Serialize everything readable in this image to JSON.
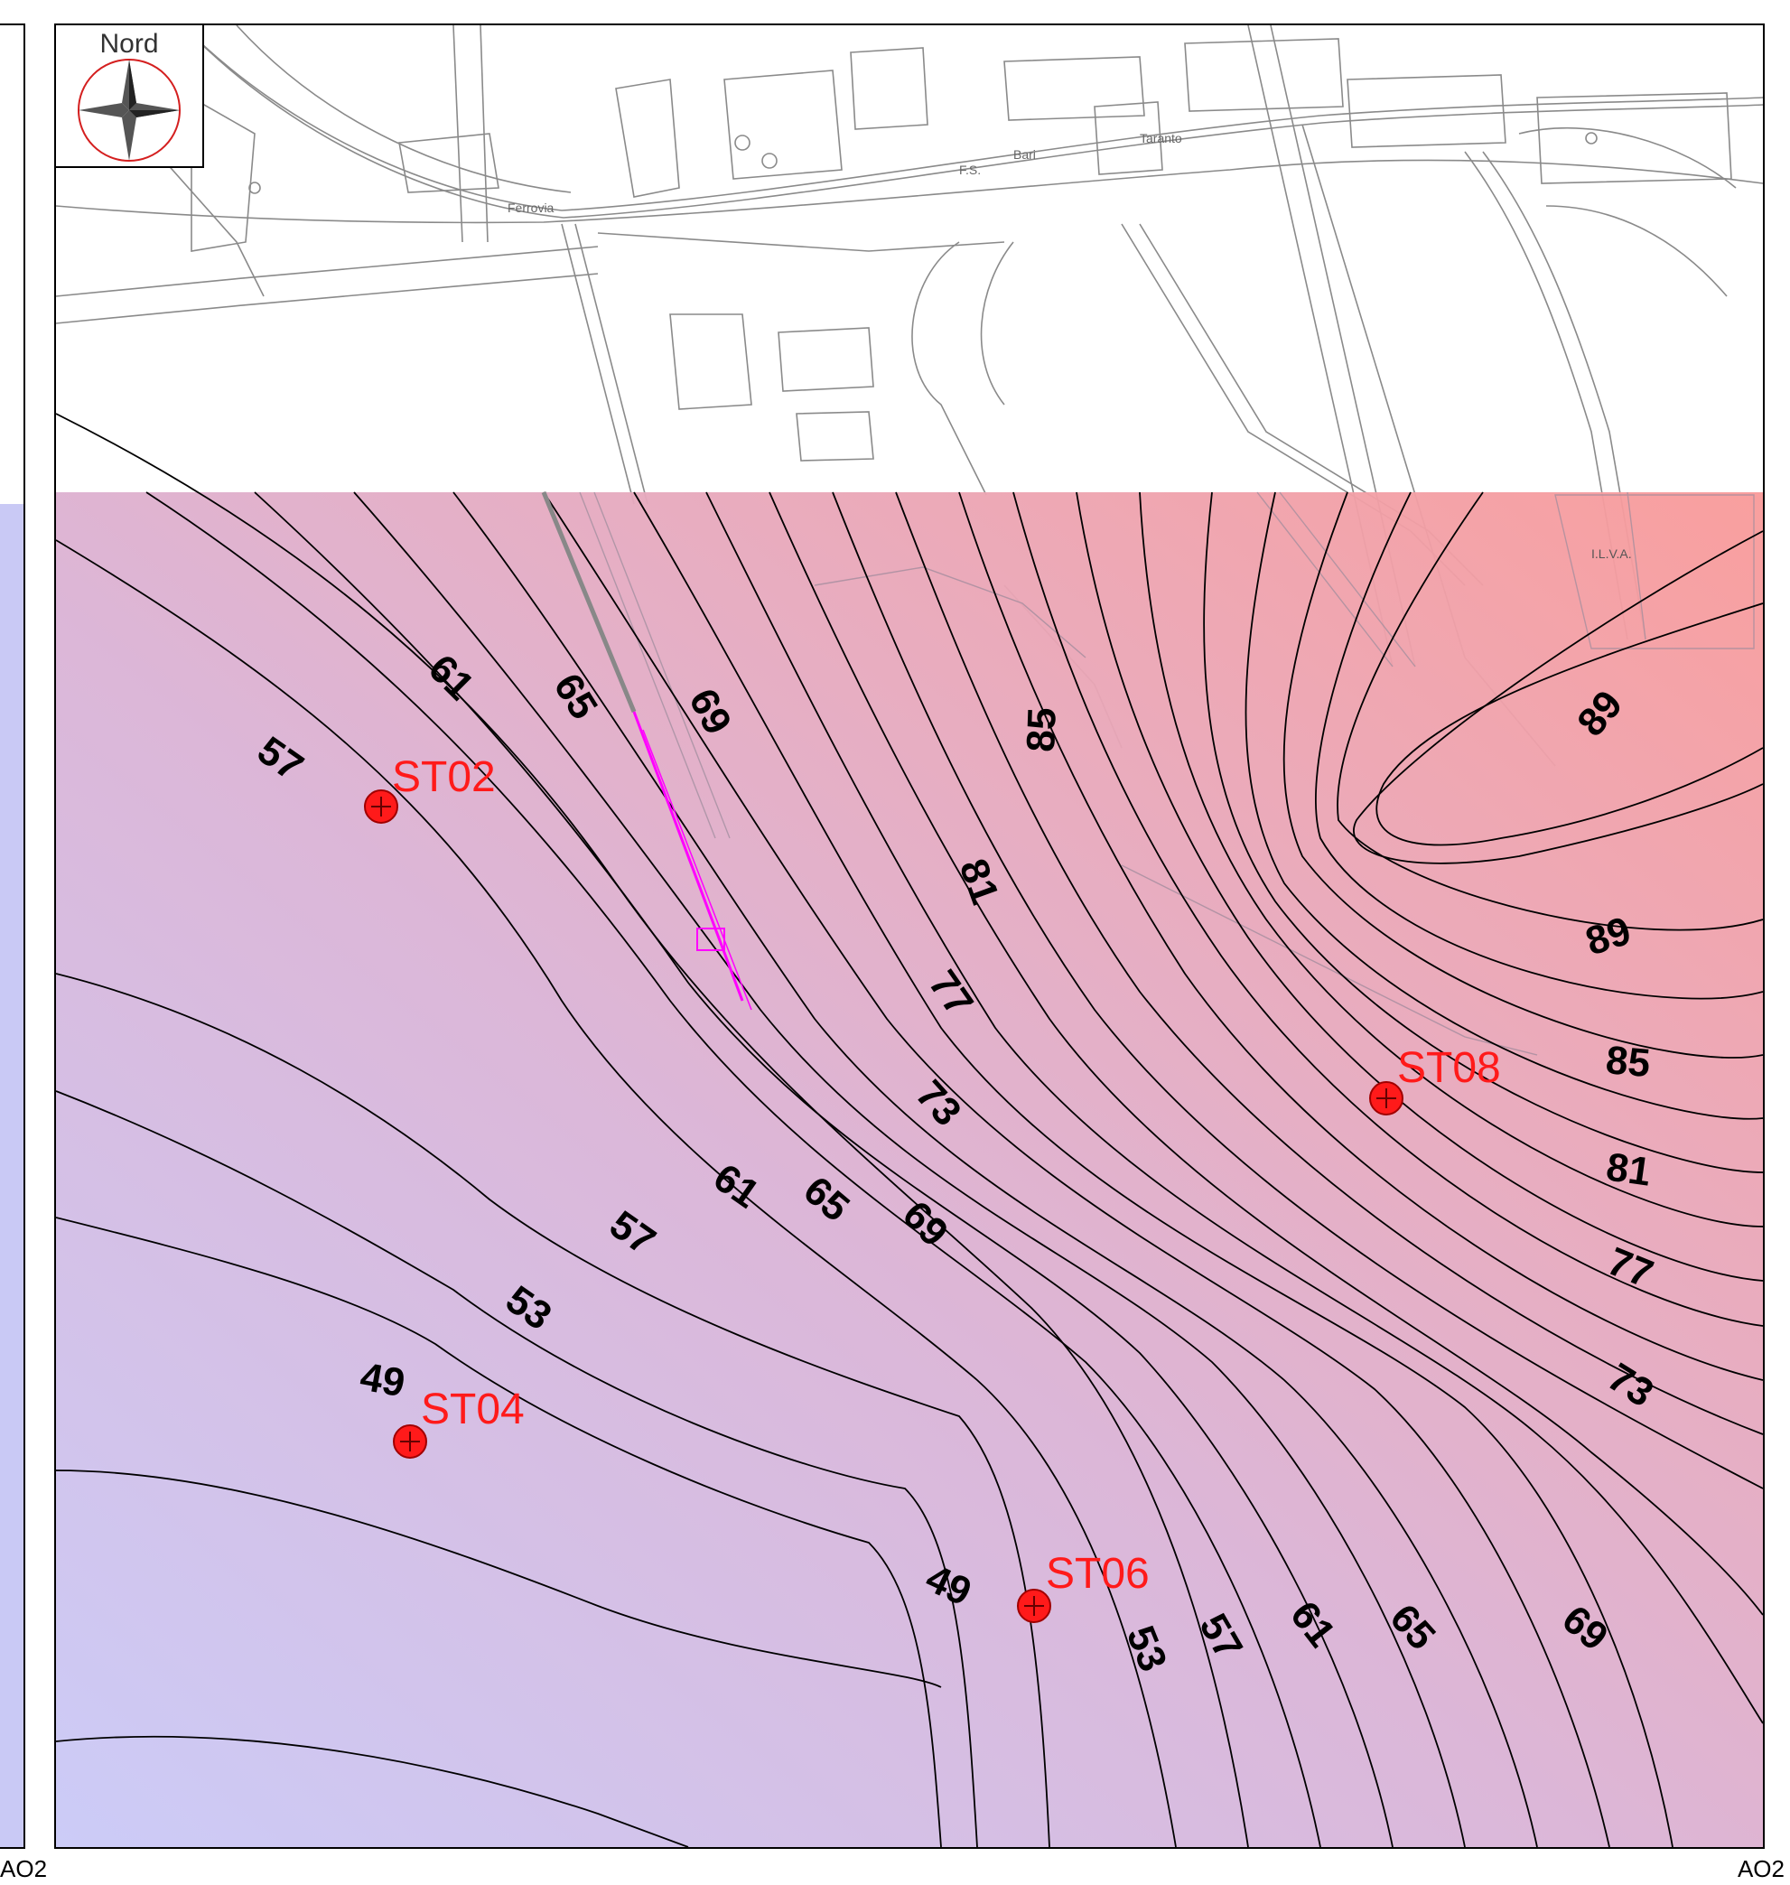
{
  "compass": {
    "title": "Nord",
    "icon": "compass-rose-icon"
  },
  "map_labels": [
    "Ferrovia",
    "F.S.",
    "Bari",
    "Taranto",
    "I.L.V.A."
  ],
  "contour_labels": [
    "57",
    "61",
    "65",
    "69",
    "85",
    "81",
    "77",
    "73",
    "89",
    "89",
    "85",
    "61",
    "65",
    "69",
    "57",
    "53",
    "81",
    "77",
    "73",
    "49",
    "49",
    "53",
    "57",
    "61",
    "65",
    "69"
  ],
  "wells": [
    {
      "id": "ST02"
    },
    {
      "id": "ST04"
    },
    {
      "id": "ST06"
    },
    {
      "id": "ST08"
    }
  ],
  "colors": {
    "low": "#c9c9f7",
    "high": "#f99a99",
    "well": "#ff1a1a",
    "pipeline": "#ff00ff"
  },
  "footer": {
    "left": "AO2",
    "right": "AO2"
  }
}
